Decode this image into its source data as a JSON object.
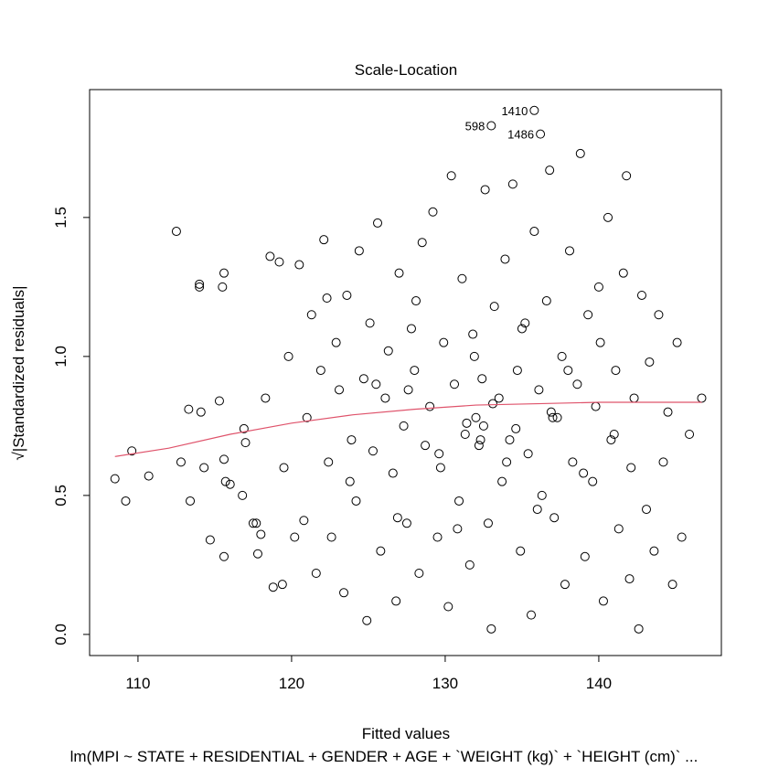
{
  "chart_data": {
    "type": "scatter",
    "title": "Scale-Location",
    "xlabel": "Fitted values",
    "ylabel": "√|Standardized residuals|",
    "caption": "lm(MPI ~ STATE + RESIDENTIAL + GENDER + AGE + `WEIGHT (kg)` + `HEIGHT (cm)` ...",
    "xlim": [
      106.85,
      147.98
    ],
    "ylim": [
      -0.076,
      1.96
    ],
    "xticks": [
      110,
      120,
      130,
      140
    ],
    "yticks": [
      {
        "value": 0,
        "label": "0.0"
      },
      {
        "value": 0.5,
        "label": "0.5"
      },
      {
        "value": 1,
        "label": "1.0"
      },
      {
        "value": 1.5,
        "label": "1.5"
      }
    ],
    "series": [
      {
        "color": "#000000",
        "x": [
          108.5,
          109.2,
          109.6,
          110.7,
          112.5,
          112.8,
          113.3,
          113.4,
          114.0,
          114.0,
          114.1,
          114.3,
          114.7,
          115.3,
          115.5,
          115.6,
          115.6,
          115.6,
          115.7,
          116.0,
          116.8,
          116.9,
          117.0,
          117.5,
          117.7,
          117.8,
          118.0,
          118.3,
          118.6,
          118.8,
          119.2,
          119.4,
          119.5,
          119.8,
          120.2,
          120.5,
          120.8,
          121.0,
          121.3,
          121.6,
          121.9,
          122.1,
          122.4,
          122.6,
          122.9,
          123.1,
          123.4,
          123.6,
          123.9,
          124.2,
          124.4,
          124.7,
          124.9,
          125.1,
          125.3,
          125.6,
          125.8,
          126.1,
          126.3,
          126.6,
          126.8,
          127.0,
          127.3,
          127.5,
          127.8,
          128.0,
          128.3,
          128.5,
          128.7,
          129.0,
          129.2,
          129.5,
          129.7,
          129.9,
          130.2,
          130.4,
          130.6,
          130.9,
          131.1,
          131.3,
          131.6,
          131.8,
          132.0,
          132.2,
          132.4,
          132.6,
          132.8,
          133.0,
          133.2,
          133.5,
          133.7,
          133.9,
          134.2,
          134.4,
          134.7,
          134.9,
          135.2,
          135.4,
          135.6,
          135.8,
          136.1,
          136.3,
          136.6,
          136.8,
          137.1,
          137.3,
          137.6,
          137.8,
          138.1,
          138.3,
          138.6,
          138.8,
          139.1,
          139.3,
          139.6,
          139.8,
          140.1,
          140.3,
          140.6,
          140.8,
          141.1,
          141.3,
          141.6,
          141.8,
          142.1,
          142.3,
          142.6,
          142.8,
          143.1,
          143.3,
          143.6,
          143.9,
          144.2,
          144.5,
          144.8,
          145.1,
          145.4,
          145.9,
          146.7,
          122.3,
          123.8,
          125.5,
          126.9,
          128.1,
          129.6,
          130.8,
          131.9,
          132.5,
          133.1,
          134.0,
          135.0,
          136.0,
          137.0,
          138.0,
          139.0,
          140.0,
          141.0,
          142.0,
          127.6,
          131.4,
          132.3,
          134.6,
          136.9,
          133.0,
          135.8,
          136.2
        ],
        "y": [
          0.56,
          0.48,
          0.66,
          0.57,
          1.45,
          0.62,
          0.81,
          0.48,
          1.25,
          1.26,
          0.8,
          0.6,
          0.34,
          0.84,
          1.25,
          1.3,
          0.28,
          0.63,
          0.55,
          0.54,
          0.5,
          0.74,
          0.69,
          0.4,
          0.4,
          0.29,
          0.36,
          0.85,
          1.36,
          0.17,
          1.34,
          0.18,
          0.6,
          1.0,
          0.35,
          1.33,
          0.41,
          0.78,
          1.15,
          0.22,
          0.95,
          1.42,
          0.62,
          0.35,
          1.05,
          0.88,
          0.15,
          1.22,
          0.7,
          0.48,
          1.38,
          0.92,
          0.05,
          1.12,
          0.66,
          1.48,
          0.3,
          0.85,
          1.02,
          0.58,
          0.12,
          1.3,
          0.75,
          0.4,
          1.1,
          0.95,
          0.22,
          1.41,
          0.68,
          0.82,
          1.52,
          0.35,
          0.6,
          1.05,
          0.1,
          1.65,
          0.9,
          0.48,
          1.28,
          0.72,
          0.25,
          1.08,
          0.78,
          0.68,
          0.92,
          1.6,
          0.4,
          0.02,
          1.18,
          0.85,
          0.55,
          1.35,
          0.7,
          1.62,
          0.95,
          0.3,
          1.12,
          0.65,
          0.07,
          1.45,
          0.88,
          0.5,
          1.2,
          1.67,
          0.42,
          0.78,
          1.0,
          0.18,
          1.38,
          0.62,
          0.9,
          1.73,
          0.28,
          1.15,
          0.55,
          0.82,
          1.05,
          0.12,
          1.5,
          0.7,
          0.95,
          0.38,
          1.3,
          1.65,
          0.6,
          0.85,
          0.02,
          1.22,
          0.45,
          0.98,
          0.3,
          1.15,
          0.62,
          0.8,
          0.18,
          1.05,
          0.35,
          0.72,
          0.85,
          1.21,
          0.55,
          0.9,
          0.42,
          1.2,
          0.65,
          0.38,
          1.0,
          0.75,
          0.83,
          0.62,
          1.1,
          0.45,
          0.78,
          0.95,
          0.58,
          1.25,
          0.72,
          0.2,
          0.88,
          0.76,
          0.7,
          0.74,
          0.8,
          1.83,
          1.885,
          1.8
        ]
      },
      {
        "color": "#DF536B",
        "style": "line",
        "x": [
          108.5,
          112,
          116,
          120,
          124,
          128,
          132,
          136,
          140,
          144,
          146.7
        ],
        "y": [
          0.64,
          0.67,
          0.72,
          0.76,
          0.79,
          0.81,
          0.825,
          0.83,
          0.835,
          0.835,
          0.835
        ]
      }
    ],
    "annotations": [
      {
        "text": "1410",
        "x": 135.8,
        "y": 1.885
      },
      {
        "text": "598",
        "x": 133.0,
        "y": 1.83
      },
      {
        "text": "1486",
        "x": 136.2,
        "y": 1.8
      }
    ]
  }
}
